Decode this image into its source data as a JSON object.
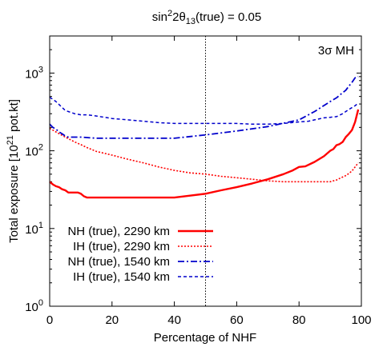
{
  "chart_data": {
    "type": "line",
    "title_parts": {
      "a": "sin",
      "b": "2",
      "c": "2θ",
      "d": "13",
      "e": "(true) = 0.05"
    },
    "xlabel": "Percentage of NHF",
    "ylabel_parts": {
      "a": "Total exposure [10",
      "b": "21",
      "c": " pot.kt]"
    },
    "annotation": "3σ MH",
    "xlim": [
      0,
      100
    ],
    "ylim": [
      1,
      3000
    ],
    "y_scale": "log",
    "x_ticks": [
      0,
      20,
      40,
      60,
      80,
      100
    ],
    "y_ticks": [
      {
        "value": 1,
        "base": "10",
        "exp": "0"
      },
      {
        "value": 10,
        "base": "10",
        "exp": "1"
      },
      {
        "value": 100,
        "base": "10",
        "exp": "2"
      },
      {
        "value": 1000,
        "base": "10",
        "exp": "3"
      }
    ],
    "reference_line_x": 50,
    "legend_position": "bottom-left",
    "series": [
      {
        "name": "NH (true), 2290 km",
        "color": "#ff0000",
        "style": "solid",
        "x": [
          0,
          1,
          2,
          3,
          4,
          5,
          6,
          7,
          8,
          9,
          10,
          11,
          12,
          20,
          30,
          40,
          45,
          50,
          55,
          60,
          65,
          70,
          75,
          78,
          80,
          82,
          85,
          88,
          90,
          91,
          92,
          93,
          94,
          95,
          96,
          97,
          98,
          99
        ],
        "y": [
          40,
          37,
          35,
          34,
          32,
          31,
          29,
          29,
          29,
          29,
          28,
          26,
          25,
          25,
          25,
          25,
          26.5,
          28,
          31,
          34,
          38,
          43,
          50,
          56,
          62,
          63,
          72,
          85,
          100,
          105,
          118,
          122,
          130,
          150,
          165,
          185,
          235,
          340
        ]
      },
      {
        "name": "IH (true), 2290 km",
        "color": "#ff0000",
        "style": "dotted",
        "x": [
          0,
          2,
          5,
          8,
          10,
          12,
          15,
          20,
          25,
          30,
          35,
          40,
          45,
          50,
          55,
          60,
          65,
          70,
          75,
          80,
          85,
          88,
          90,
          91,
          92,
          93,
          94,
          95,
          96,
          97,
          98,
          99
        ],
        "y": [
          195,
          175,
          150,
          130,
          120,
          110,
          98,
          88,
          78,
          70,
          62,
          56,
          52,
          50,
          47,
          45,
          43,
          41,
          40,
          40,
          40,
          40,
          40,
          41,
          42,
          44,
          46,
          48,
          51,
          55,
          62,
          70
        ]
      },
      {
        "name": "NH (true), 1540 km",
        "color": "#0000cc",
        "style": "dashdot",
        "x": [
          0,
          1,
          2,
          3,
          4,
          5,
          6,
          7,
          8,
          9,
          10,
          15,
          20,
          30,
          40,
          50,
          60,
          70,
          80,
          85,
          90,
          92,
          94,
          95,
          96,
          97,
          98,
          99
        ],
        "y": [
          220,
          200,
          190,
          175,
          165,
          155,
          150,
          150,
          150,
          150,
          150,
          145,
          145,
          145,
          145,
          160,
          180,
          205,
          250,
          320,
          430,
          480,
          560,
          600,
          680,
          760,
          870,
          900
        ]
      },
      {
        "name": "IH (true), 1540 km",
        "color": "#0000cc",
        "style": "dashed",
        "x": [
          0,
          2,
          4,
          5,
          8,
          10,
          12,
          15,
          20,
          25,
          30,
          35,
          40,
          45,
          50,
          55,
          60,
          65,
          70,
          75,
          80,
          83,
          85,
          88,
          90,
          92,
          94,
          96,
          98,
          99
        ],
        "y": [
          490,
          430,
          360,
          330,
          300,
          290,
          290,
          280,
          260,
          250,
          240,
          230,
          225,
          225,
          225,
          225,
          225,
          220,
          220,
          225,
          235,
          240,
          250,
          265,
          270,
          275,
          300,
          340,
          380,
          410
        ]
      }
    ]
  }
}
